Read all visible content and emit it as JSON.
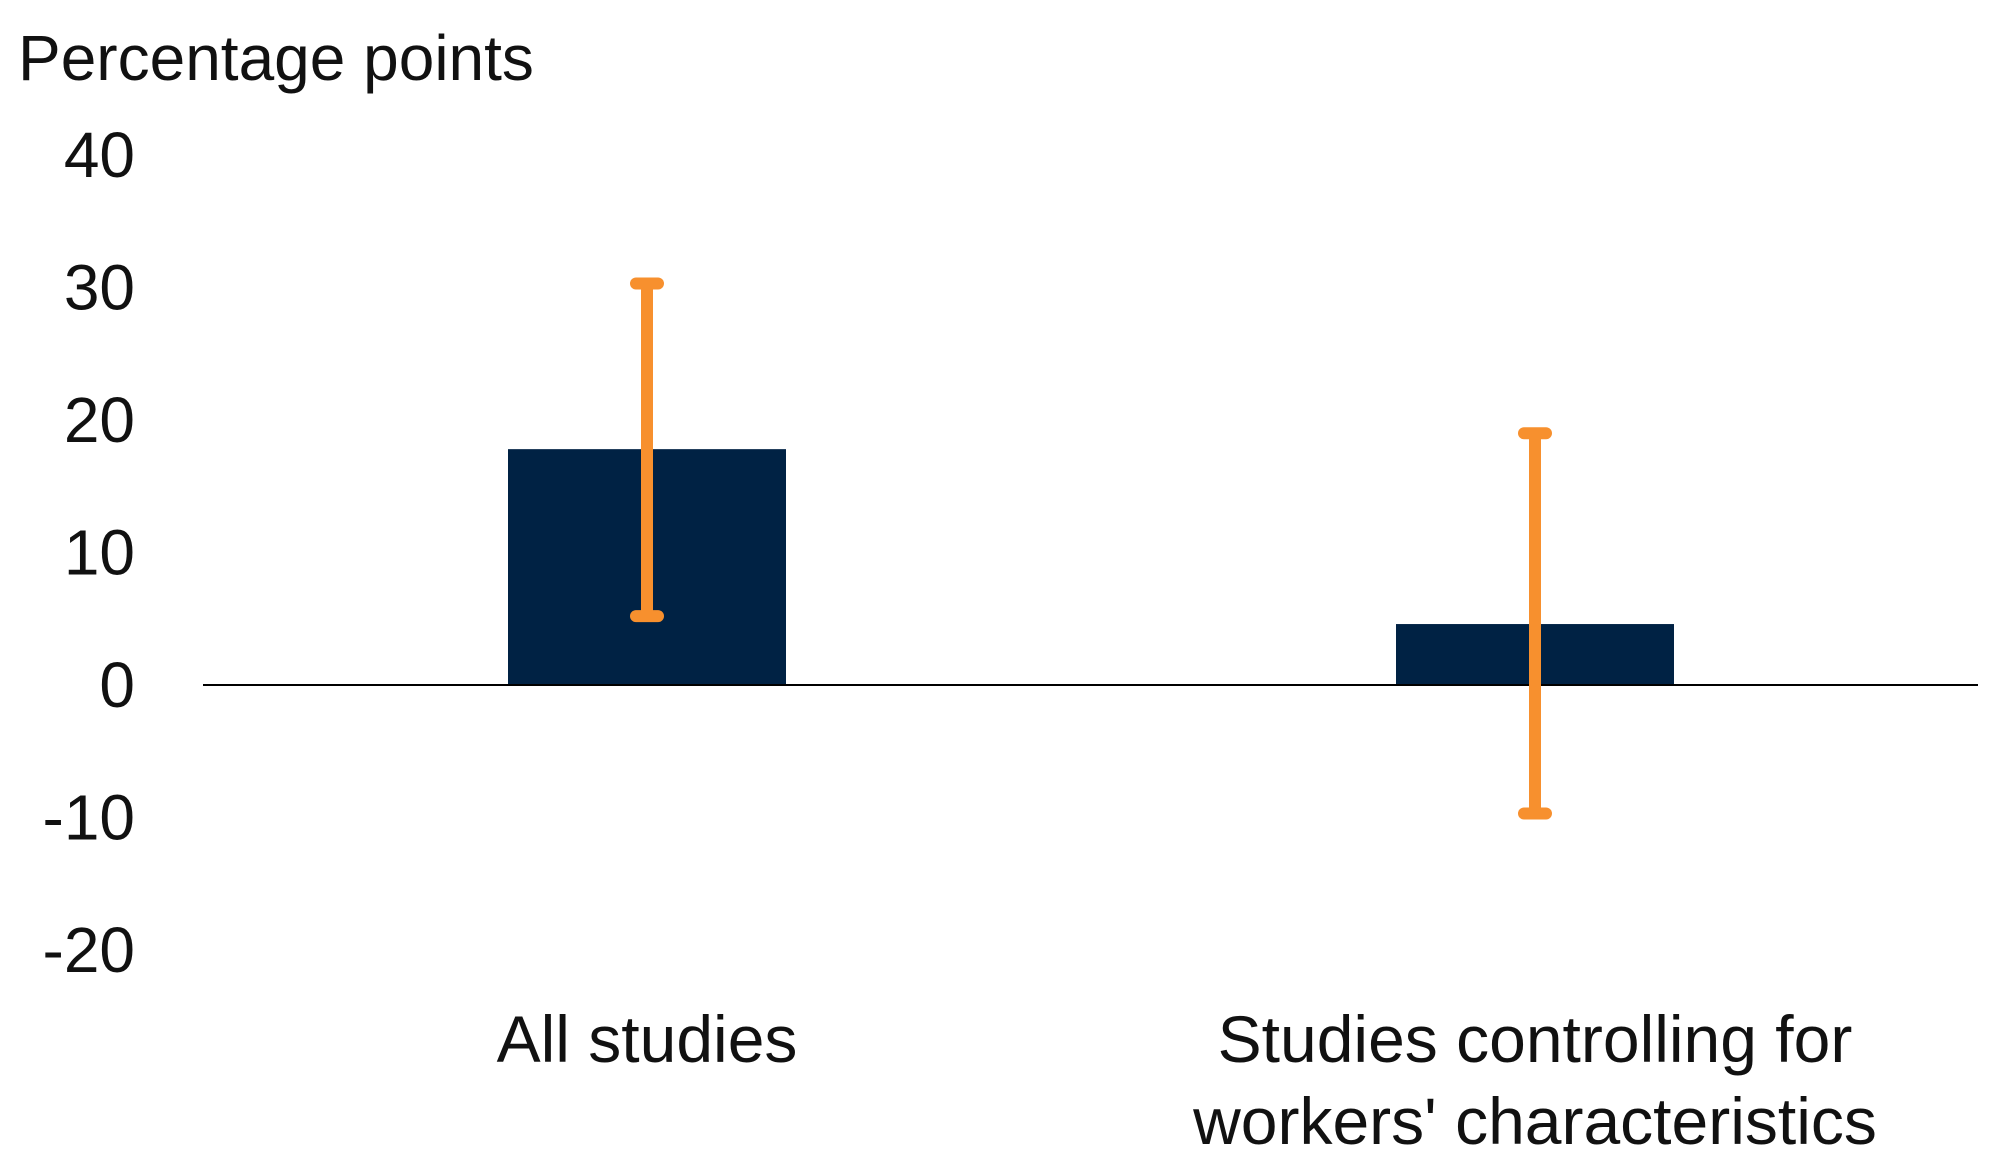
{
  "chart_data": {
    "type": "bar",
    "ylabel": "Percentage points",
    "categories": [
      [
        "All studies"
      ],
      [
        "Studies controlling for",
        "workers' characteristics"
      ]
    ],
    "series": [
      {
        "values": [
          17.8,
          4.6
        ],
        "error_low": [
          5.2,
          -9.7
        ],
        "error_high": [
          30.3,
          19.0
        ]
      }
    ],
    "yticks": [
      40,
      30,
      20,
      10,
      0,
      -10,
      -20
    ],
    "ylim": [
      -20,
      40
    ],
    "grid": false,
    "legend": "none"
  },
  "colors": {
    "bar": "#002244",
    "error_bar": "#f7902e",
    "axis": "#000000"
  }
}
